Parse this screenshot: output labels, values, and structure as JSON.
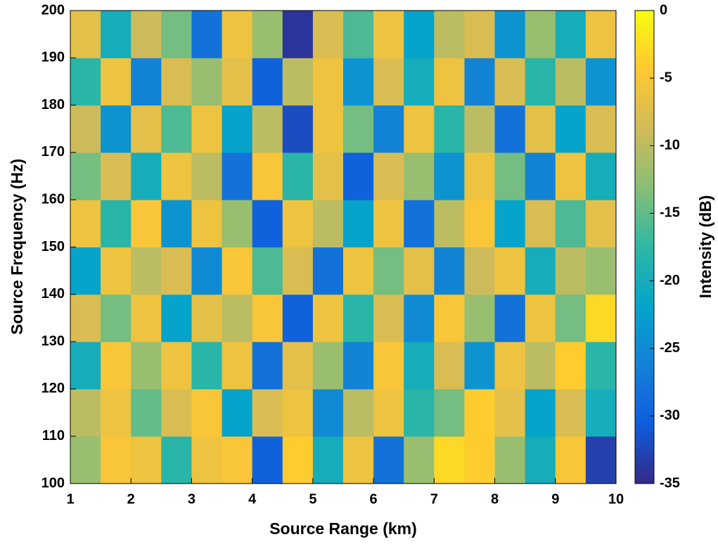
{
  "chart_data": {
    "type": "heatmap",
    "xlabel": "Source Range (km)",
    "ylabel": "Source Frequency (Hz)",
    "colorbar_label": "Intensity (dB)",
    "xlim": [
      1,
      10
    ],
    "ylim": [
      100,
      200
    ],
    "xticks": [
      1,
      2,
      3,
      4,
      5,
      6,
      7,
      8,
      9,
      10
    ],
    "yticks": [
      100,
      110,
      120,
      130,
      140,
      150,
      160,
      170,
      180,
      190,
      200
    ],
    "clim": [
      -35,
      0
    ],
    "cticks": [
      -35,
      -30,
      -25,
      -20,
      -15,
      -10,
      -5,
      0
    ],
    "colormap": [
      "#352a87",
      "#0f5cdd",
      "#1481d6",
      "#06a4ca",
      "#2eb7a4",
      "#87bf77",
      "#d1bb59",
      "#fec832",
      "#f9fb0e"
    ],
    "x": [
      1.25,
      1.75,
      2.25,
      2.75,
      3.25,
      3.75,
      4.25,
      4.75,
      5.25,
      5.75,
      6.25,
      6.75,
      7.25,
      7.75,
      8.25,
      8.75,
      9.25,
      9.75
    ],
    "y": [
      105,
      115,
      125,
      135,
      145,
      155,
      165,
      175,
      185,
      195
    ],
    "z": [
      [
        -12,
        -5,
        -6,
        -18,
        -6,
        -5,
        -30,
        -4,
        -20,
        -6,
        -28,
        -12,
        -3,
        -4,
        -12,
        -20,
        -5,
        -33
      ],
      [
        -10,
        -6,
        -15,
        -8,
        -5,
        -22,
        -8,
        -6,
        -25,
        -10,
        -6,
        -18,
        -14,
        -4,
        -7,
        -22,
        -8,
        -20
      ],
      [
        -20,
        -5,
        -12,
        -6,
        -18,
        -6,
        -28,
        -7,
        -12,
        -26,
        -5,
        -20,
        -8,
        -24,
        -6,
        -10,
        -4,
        -18
      ],
      [
        -8,
        -14,
        -6,
        -22,
        -7,
        -10,
        -5,
        -30,
        -6,
        -18,
        -8,
        -25,
        -5,
        -12,
        -28,
        -6,
        -14,
        -3
      ],
      [
        -22,
        -6,
        -10,
        -8,
        -25,
        -5,
        -16,
        -8,
        -28,
        -6,
        -14,
        -7,
        -26,
        -9,
        -6,
        -20,
        -10,
        -12
      ],
      [
        -6,
        -18,
        -5,
        -24,
        -6,
        -12,
        -30,
        -6,
        -10,
        -22,
        -6,
        -28,
        -10,
        -5,
        -22,
        -8,
        -16,
        -7
      ],
      [
        -14,
        -8,
        -20,
        -6,
        -10,
        -28,
        -5,
        -18,
        -7,
        -30,
        -8,
        -12,
        -24,
        -6,
        -14,
        -26,
        -6,
        -20
      ],
      [
        -9,
        -24,
        -7,
        -16,
        -6,
        -22,
        -10,
        -32,
        -6,
        -14,
        -26,
        -6,
        -18,
        -10,
        -28,
        -7,
        -22,
        -8
      ],
      [
        -18,
        -6,
        -26,
        -8,
        -12,
        -7,
        -30,
        -10,
        -6,
        -24,
        -8,
        -20,
        -6,
        -26,
        -8,
        -18,
        -10,
        -24
      ],
      [
        -7,
        -20,
        -9,
        -14,
        -28,
        -6,
        -12,
        -34,
        -8,
        -16,
        -6,
        -22,
        -10,
        -8,
        -24,
        -12,
        -20,
        -6
      ]
    ]
  }
}
